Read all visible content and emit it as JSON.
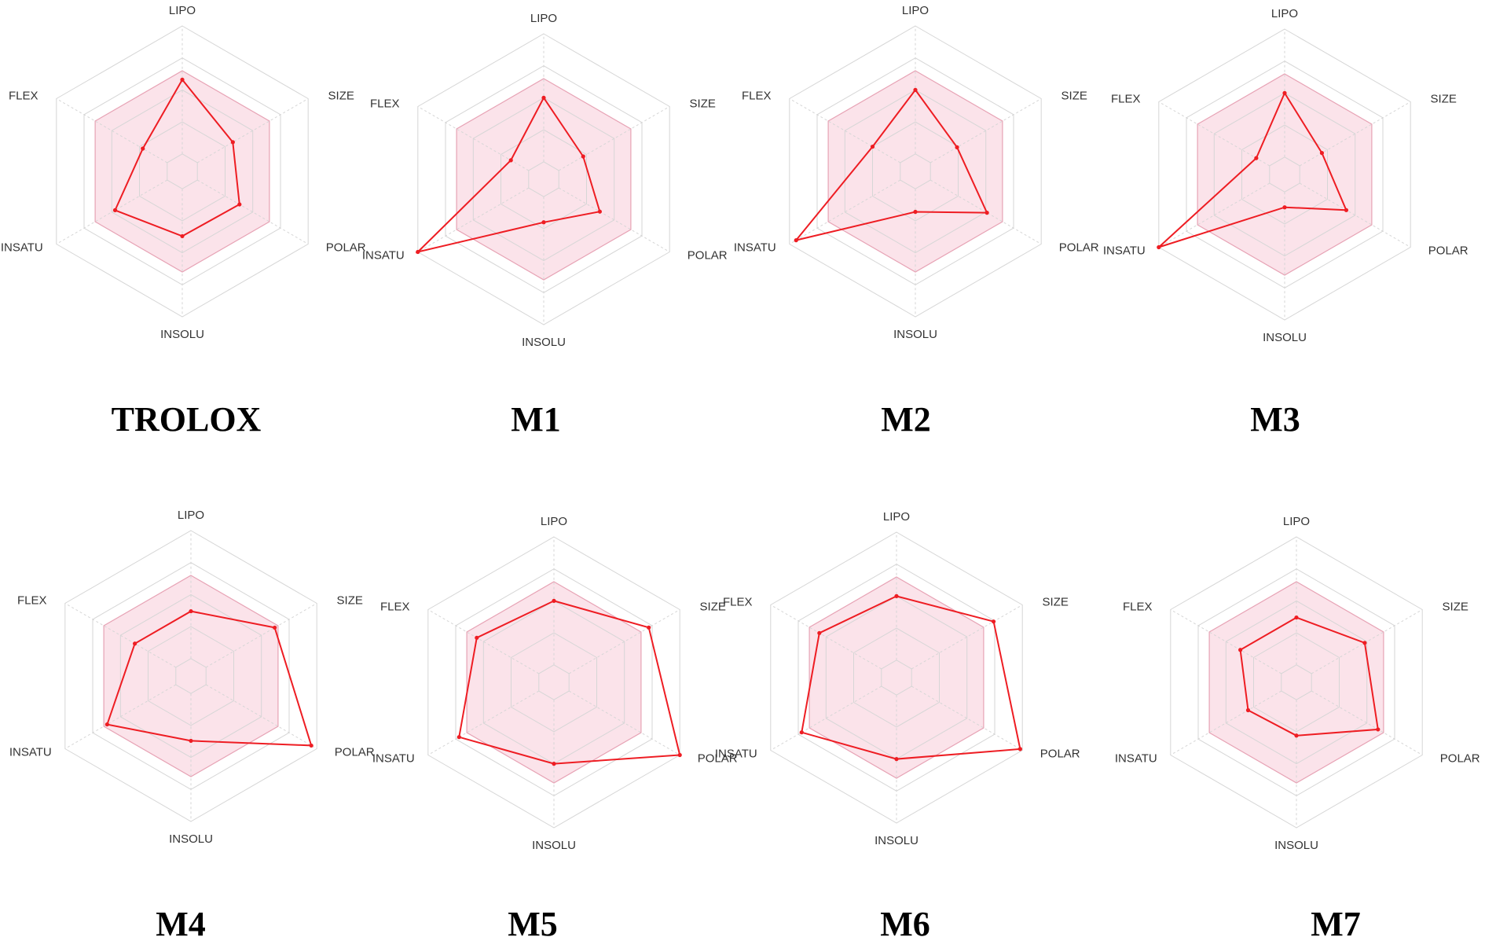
{
  "figure": {
    "colors": {
      "band_fill": "#fbe3ea",
      "band_stroke": "#e7a3b5",
      "grid": "#d6d6d6",
      "line": "#ee1d23",
      "label": "#333333",
      "title": "#000000"
    }
  },
  "chart_data": [
    {
      "type": "radar",
      "name": "TROLOX",
      "axes": [
        "LIPO",
        "SIZE",
        "POLAR",
        "INSOLU",
        "INSATU",
        "FLEX"
      ],
      "band": [
        0.65,
        0.65,
        0.65,
        0.65,
        0.65,
        0.65
      ],
      "values": [
        0.58,
        0.32,
        0.38,
        0.37,
        0.47,
        0.22
      ],
      "range": [
        0,
        1
      ]
    },
    {
      "type": "radar",
      "name": "M1",
      "axes": [
        "LIPO",
        "SIZE",
        "POLAR",
        "INSOLU",
        "INSATU",
        "FLEX"
      ],
      "band": [
        0.65,
        0.65,
        0.65,
        0.65,
        0.65,
        0.65
      ],
      "values": [
        0.5,
        0.22,
        0.37,
        0.2,
        1.0,
        0.16
      ],
      "range": [
        0,
        1
      ]
    },
    {
      "type": "radar",
      "name": "M2",
      "axes": [
        "LIPO",
        "SIZE",
        "POLAR",
        "INSOLU",
        "INSATU",
        "FLEX"
      ],
      "band": [
        0.65,
        0.65,
        0.65,
        0.65,
        0.65,
        0.65
      ],
      "values": [
        0.5,
        0.24,
        0.51,
        0.18,
        0.94,
        0.25
      ],
      "range": [
        0,
        1
      ]
    },
    {
      "type": "radar",
      "name": "M3",
      "axes": [
        "LIPO",
        "SIZE",
        "POLAR",
        "INSOLU",
        "INSATU",
        "FLEX"
      ],
      "band": [
        0.65,
        0.65,
        0.65,
        0.65,
        0.65,
        0.65
      ],
      "values": [
        0.5,
        0.2,
        0.42,
        0.12,
        1.0,
        0.12
      ],
      "range": [
        0,
        1
      ]
    },
    {
      "type": "radar",
      "name": "M4",
      "axes": [
        "LIPO",
        "SIZE",
        "POLAR",
        "INSOLU",
        "INSATU",
        "FLEX"
      ],
      "band": [
        0.65,
        0.65,
        0.65,
        0.65,
        0.65,
        0.65
      ],
      "values": [
        0.37,
        0.62,
        0.95,
        0.37,
        0.62,
        0.37
      ],
      "range": [
        0,
        1
      ]
    },
    {
      "type": "radar",
      "name": "M5",
      "axes": [
        "LIPO",
        "SIZE",
        "POLAR",
        "INSOLU",
        "INSATU",
        "FLEX"
      ],
      "band": [
        0.65,
        0.65,
        0.65,
        0.65,
        0.65,
        0.65
      ],
      "values": [
        0.5,
        0.72,
        1.0,
        0.5,
        0.72,
        0.56
      ],
      "range": [
        0,
        1
      ]
    },
    {
      "type": "radar",
      "name": "M6",
      "axes": [
        "LIPO",
        "SIZE",
        "POLAR",
        "INSOLU",
        "INSATU",
        "FLEX"
      ],
      "band": [
        0.65,
        0.65,
        0.65,
        0.65,
        0.65,
        0.65
      ],
      "values": [
        0.5,
        0.74,
        0.98,
        0.5,
        0.72,
        0.56
      ],
      "range": [
        0,
        1
      ]
    },
    {
      "type": "radar",
      "name": "M7",
      "axes": [
        "LIPO",
        "SIZE",
        "POLAR",
        "INSOLU",
        "INSATU",
        "FLEX"
      ],
      "band": [
        0.65,
        0.65,
        0.65,
        0.65,
        0.65,
        0.65
      ],
      "values": [
        0.37,
        0.48,
        0.6,
        0.28,
        0.3,
        0.37
      ],
      "range": [
        0,
        1
      ]
    }
  ]
}
